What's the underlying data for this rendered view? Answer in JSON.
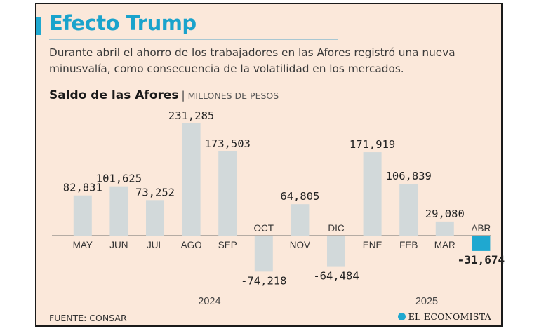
{
  "header": {
    "title": "Efecto Trump",
    "subtitle": "Durante abril el ahorro de los trabajadores en las Afores registró una nueva minusvalía, como consecuencia de la volatilidad en los mercados."
  },
  "chart_heading": {
    "title": "Saldo de las Afores",
    "separator": "|",
    "unit": "MILLONES DE PESOS"
  },
  "footer": {
    "source": "FUENTE: CONSAR",
    "brand": "EL ECONOMISTA"
  },
  "colors": {
    "background": "#fbe8da",
    "bar": "#d2d9da",
    "highlight_bar": "#1fa8d0",
    "title": "#1aa3cc"
  },
  "chart_data": {
    "type": "bar",
    "title": "Saldo de las Afores",
    "unit": "MILLONES DE PESOS",
    "categories": [
      "MAY",
      "JUN",
      "JUL",
      "AGO",
      "SEP",
      "OCT",
      "NOV",
      "DIC",
      "ENE",
      "FEB",
      "MAR",
      "ABR"
    ],
    "value_labels": [
      "82,831",
      "101,625",
      "73,252",
      "231,285",
      "173,503",
      "-74,218",
      "64,805",
      "-64,484",
      "171,919",
      "106,839",
      "29,080",
      "-31,674"
    ],
    "values": [
      82831,
      101625,
      73252,
      231285,
      173503,
      -74218,
      64805,
      -64484,
      171919,
      106839,
      29080,
      -31674
    ],
    "highlight": "ABR",
    "year_groups": [
      {
        "label": "2024",
        "categories": [
          "MAY",
          "JUN",
          "JUL",
          "AGO",
          "SEP",
          "OCT",
          "NOV",
          "DIC"
        ]
      },
      {
        "label": "2025",
        "categories": [
          "ENE",
          "FEB",
          "MAR",
          "ABR"
        ]
      }
    ],
    "ylim": [
      -80000,
      240000
    ],
    "grid": false,
    "legend": "none"
  }
}
